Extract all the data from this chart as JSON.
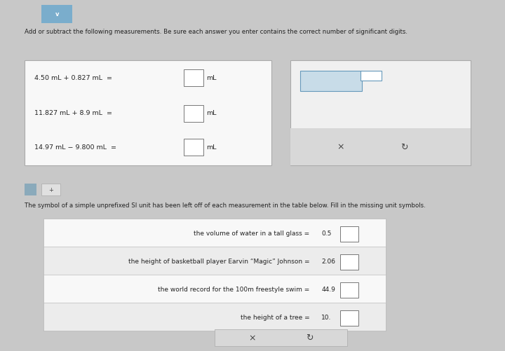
{
  "overall_bg": "#c8c8c8",
  "panel_bg": "#f0f0f0",
  "panel_bg2": "#ebebeb",
  "white": "#ffffff",
  "eq_box_bg": "#f8f8f8",
  "right_box_bg": "#f0f0f0",
  "row_bg_odd": "#f8f8f8",
  "row_bg_even": "#ececec",
  "border_color": "#aaaaaa",
  "text_dark": "#222222",
  "text_med": "#444444",
  "blue_box_fill": "#c8dce8",
  "blue_box_edge": "#6699bb",
  "btn_bg": "#d8d8d8",
  "tab_color": "#8aaabb",
  "panel1_title": "Add or subtract the following measurements. Be sure each answer you enter contains the correct number of significant digits.",
  "panel2_title": "The symbol of a simple unprefixed SI unit has been left off of each measurement in the table below. Fill in the missing unit symbols.",
  "equations": [
    "4.50 mL + 0.827 mL  =",
    "11.827 mL + 8.9 mL  =",
    "14.97 mL − 9.800 mL  ="
  ],
  "unit_label": "mL",
  "table_rows": [
    {
      "label": "the volume of water in a tall glass =",
      "value": "0.5"
    },
    {
      "label": "the height of basketball player Earvin “Magic” Johnson =",
      "value": "2.06"
    },
    {
      "label": "the world record for the 100m freestyle swim =",
      "value": "44.9"
    },
    {
      "label": "the height of a tree =",
      "value": "10."
    }
  ],
  "font_title": 6.2,
  "font_eq": 6.8,
  "font_table": 6.5,
  "font_btn": 8
}
